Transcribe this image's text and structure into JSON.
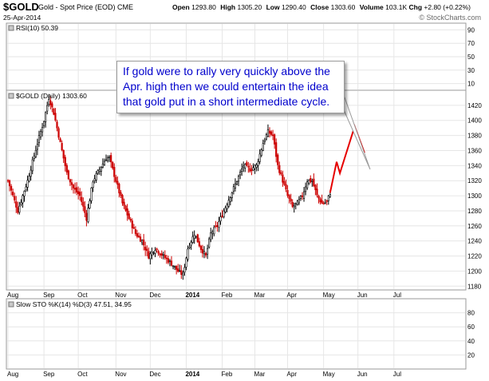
{
  "header": {
    "ticker": "$GOLD",
    "name": "Gold - Spot Price (EOD)",
    "exchange": "CME",
    "date": "25-Apr-2014",
    "open_label": "Open",
    "open": "1293.80",
    "high_label": "High",
    "high": "1305.20",
    "low_label": "Low",
    "low": "1290.40",
    "close_label": "Close",
    "close": "1303.60",
    "volume_label": "Volume",
    "volume": "103.1K",
    "chg_label": "Chg",
    "chg": "+2.80 (+0.22%)",
    "watermark": "© StockCharts.com"
  },
  "colors": {
    "up": "#000000",
    "down": "#cc0000",
    "projection": "#e60000",
    "grid": "#e6e6e6",
    "panel_bg": "#ffffff",
    "callout_text": "#0000cc"
  },
  "annotation": {
    "lines": [
      "If gold were to rally very quickly above the",
      "Apr. high then we could entertain the idea",
      "that gold put in a short intermediate cycle."
    ]
  },
  "chart_data": [
    {
      "type": "line",
      "panel": "rsi",
      "label": "RSI(10) 50.39",
      "ylim": [
        0,
        100
      ],
      "yticks": [
        10,
        30,
        50,
        70,
        90
      ],
      "grid": true
    },
    {
      "type": "candlestick",
      "panel": "price",
      "label": "$GOLD (Daily) 1303.60",
      "ylim": [
        1175,
        1440
      ],
      "yticks": [
        1180,
        1200,
        1220,
        1240,
        1260,
        1280,
        1300,
        1320,
        1340,
        1360,
        1380,
        1400,
        1420
      ],
      "x_labels": [
        "Aug",
        "Sep",
        "Oct",
        "Nov",
        "Dec",
        "2014",
        "Feb",
        "Mar",
        "Apr",
        "May",
        "Jun",
        "Jul"
      ],
      "x_label_index": [
        0,
        22,
        43,
        66,
        87,
        109,
        131,
        151,
        171,
        193,
        214,
        236
      ],
      "grid": true,
      "anchors": [
        [
          0,
          1320
        ],
        [
          6,
          1280
        ],
        [
          12,
          1320
        ],
        [
          18,
          1370
        ],
        [
          22,
          1400
        ],
        [
          25,
          1430
        ],
        [
          28,
          1410
        ],
        [
          32,
          1370
        ],
        [
          36,
          1330
        ],
        [
          40,
          1310
        ],
        [
          44,
          1300
        ],
        [
          48,
          1270
        ],
        [
          52,
          1320
        ],
        [
          56,
          1335
        ],
        [
          60,
          1350
        ],
        [
          62,
          1350
        ],
        [
          66,
          1320
        ],
        [
          70,
          1290
        ],
        [
          74,
          1270
        ],
        [
          78,
          1250
        ],
        [
          82,
          1240
        ],
        [
          86,
          1220
        ],
        [
          90,
          1230
        ],
        [
          95,
          1220
        ],
        [
          100,
          1210
        ],
        [
          104,
          1200
        ],
        [
          107,
          1195
        ],
        [
          110,
          1230
        ],
        [
          114,
          1250
        ],
        [
          118,
          1230
        ],
        [
          121,
          1220
        ],
        [
          124,
          1250
        ],
        [
          128,
          1260
        ],
        [
          132,
          1280
        ],
        [
          136,
          1300
        ],
        [
          140,
          1320
        ],
        [
          144,
          1340
        ],
        [
          148,
          1335
        ],
        [
          152,
          1340
        ],
        [
          156,
          1370
        ],
        [
          159,
          1385
        ],
        [
          162,
          1380
        ],
        [
          165,
          1340
        ],
        [
          168,
          1320
        ],
        [
          171,
          1300
        ],
        [
          174,
          1285
        ],
        [
          177,
          1290
        ],
        [
          180,
          1300
        ],
        [
          183,
          1320
        ],
        [
          186,
          1320
        ],
        [
          189,
          1300
        ],
        [
          192,
          1290
        ],
        [
          195,
          1292
        ],
        [
          197,
          1304
        ]
      ],
      "projection": [
        [
          197,
          1304
        ],
        [
          201,
          1345
        ],
        [
          203,
          1330
        ],
        [
          212,
          1392
        ],
        [
          218,
          1357
        ]
      ]
    },
    {
      "type": "line",
      "panel": "stochastic",
      "label": "Slow STO %K(14) %D(3) 47.51, 34.95",
      "ylim": [
        0,
        100
      ],
      "yticks": [
        20,
        40,
        60,
        80
      ],
      "grid": true
    }
  ]
}
